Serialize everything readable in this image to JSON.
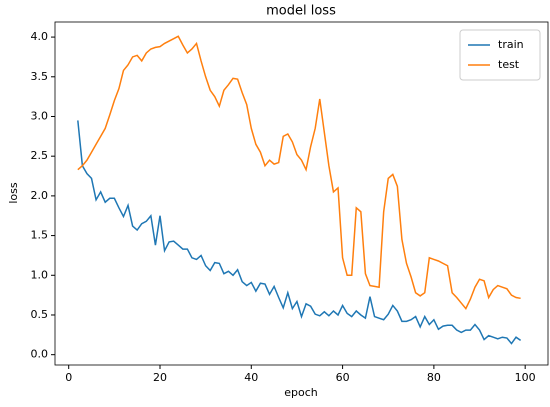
{
  "chart_data": {
    "type": "line",
    "title": "model loss",
    "x_label": "epoch",
    "y_label": "loss",
    "x": [
      2,
      3,
      4,
      5,
      6,
      7,
      8,
      9,
      10,
      11,
      12,
      13,
      14,
      15,
      16,
      17,
      18,
      19,
      20,
      21,
      22,
      23,
      24,
      25,
      26,
      27,
      28,
      29,
      30,
      31,
      32,
      33,
      34,
      35,
      36,
      37,
      38,
      39,
      40,
      41,
      42,
      43,
      44,
      45,
      46,
      47,
      48,
      49,
      50,
      51,
      52,
      53,
      54,
      55,
      56,
      57,
      58,
      59,
      60,
      61,
      62,
      63,
      64,
      65,
      66,
      67,
      68,
      69,
      70,
      71,
      72,
      73,
      74,
      75,
      76,
      77,
      78,
      79,
      80,
      81,
      82,
      83,
      84,
      85,
      86,
      87,
      88,
      89,
      90,
      91,
      92,
      93,
      94,
      95,
      96,
      97,
      98,
      99
    ],
    "series": [
      {
        "name": "train",
        "color": "#1f77b4",
        "values": [
          2.95,
          2.38,
          2.28,
          2.22,
          1.95,
          2.05,
          1.92,
          1.97,
          1.97,
          1.85,
          1.74,
          1.88,
          1.62,
          1.57,
          1.65,
          1.68,
          1.75,
          1.38,
          1.75,
          1.31,
          1.42,
          1.43,
          1.38,
          1.33,
          1.33,
          1.22,
          1.2,
          1.25,
          1.12,
          1.06,
          1.16,
          1.15,
          1.02,
          1.05,
          1.0,
          1.07,
          0.92,
          0.87,
          0.91,
          0.8,
          0.9,
          0.89,
          0.76,
          0.86,
          0.72,
          0.59,
          0.78,
          0.58,
          0.67,
          0.48,
          0.64,
          0.61,
          0.51,
          0.49,
          0.54,
          0.49,
          0.55,
          0.5,
          0.62,
          0.52,
          0.48,
          0.55,
          0.5,
          0.46,
          0.73,
          0.48,
          0.46,
          0.44,
          0.51,
          0.62,
          0.55,
          0.42,
          0.42,
          0.44,
          0.48,
          0.35,
          0.48,
          0.38,
          0.44,
          0.32,
          0.36,
          0.37,
          0.37,
          0.31,
          0.28,
          0.31,
          0.31,
          0.38,
          0.31,
          0.19,
          0.24,
          0.22,
          0.2,
          0.22,
          0.21,
          0.14,
          0.22,
          0.18
        ]
      },
      {
        "name": "test",
        "color": "#ff7f0e",
        "values": [
          2.33,
          2.38,
          2.45,
          2.55,
          2.65,
          2.75,
          2.85,
          3.02,
          3.2,
          3.35,
          3.58,
          3.65,
          3.75,
          3.77,
          3.7,
          3.8,
          3.85,
          3.87,
          3.88,
          3.92,
          3.95,
          3.98,
          4.01,
          3.9,
          3.8,
          3.85,
          3.92,
          3.7,
          3.5,
          3.33,
          3.25,
          3.13,
          3.33,
          3.4,
          3.48,
          3.47,
          3.3,
          3.15,
          2.85,
          2.65,
          2.55,
          2.38,
          2.45,
          2.4,
          2.42,
          2.75,
          2.78,
          2.68,
          2.52,
          2.45,
          2.33,
          2.62,
          2.85,
          3.22,
          2.8,
          2.38,
          2.05,
          2.1,
          1.22,
          1.0,
          1.0,
          1.85,
          1.8,
          1.02,
          0.87,
          0.86,
          0.85,
          1.8,
          2.22,
          2.27,
          2.12,
          1.45,
          1.15,
          0.98,
          0.78,
          0.74,
          0.78,
          1.22,
          1.2,
          1.18,
          1.15,
          1.12,
          0.78,
          0.72,
          0.65,
          0.58,
          0.7,
          0.85,
          0.95,
          0.93,
          0.72,
          0.82,
          0.87,
          0.85,
          0.83,
          0.75,
          0.72,
          0.71
        ]
      }
    ],
    "xlim": [
      -3,
      105
    ],
    "ylim": [
      -0.13,
      4.19
    ],
    "xticks": [
      0,
      20,
      40,
      60,
      80,
      100
    ],
    "yticks": [
      {
        "value": 0,
        "label": "0.0"
      },
      0.5,
      {
        "value": 1,
        "label": "1.0"
      },
      1.5,
      {
        "value": 2,
        "label": "2.0"
      },
      2.5,
      {
        "value": 3,
        "label": "3.0"
      },
      3.5,
      {
        "value": 4,
        "label": "4.0"
      }
    ],
    "legend": "upper right"
  }
}
